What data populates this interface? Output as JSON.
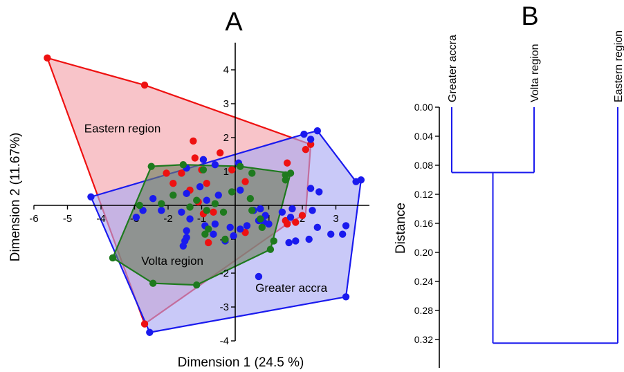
{
  "chart_data": [
    {
      "panel": "A",
      "type": "scatter",
      "xlabel": "Dimension 1 (24.5 %)",
      "ylabel": "Dimension 2 (11.67%)",
      "xlim": [
        -6,
        4
      ],
      "ylim": [
        -4,
        4.8
      ],
      "x_ticks": [
        -6,
        -5,
        -4,
        -3,
        -2,
        -1,
        1,
        2,
        3
      ],
      "y_ticks": [
        4,
        3,
        2,
        1,
        -1,
        -2,
        -3,
        -4
      ],
      "region_labels": [
        {
          "text": "Eastern region",
          "x": -4.5,
          "y": 2.15
        },
        {
          "text": "Volta region",
          "x": -2.8,
          "y": -1.75
        },
        {
          "text": "Greater accra",
          "x": 0.6,
          "y": -2.55
        }
      ],
      "series": [
        {
          "color": "#ee1111",
          "hull_fill": "#f4a0a8",
          "points": [
            [
              -5.6,
              4.35
            ],
            [
              -2.7,
              3.55
            ],
            [
              -1.25,
              1.9
            ],
            [
              -1.2,
              1.4
            ],
            [
              -1.0,
              1.05
            ],
            [
              -0.45,
              1.55
            ],
            [
              -0.1,
              1.05
            ],
            [
              -1.6,
              0.95
            ],
            [
              -2.05,
              0.95
            ],
            [
              -1.85,
              0.65
            ],
            [
              -0.85,
              0.65
            ],
            [
              -1.35,
              0.45
            ],
            [
              0.3,
              0.7
            ],
            [
              -1.1,
              0.1
            ],
            [
              -0.95,
              -0.25
            ],
            [
              -0.65,
              -0.2
            ],
            [
              -0.8,
              -1.1
            ],
            [
              0.3,
              -0.8
            ],
            [
              1.5,
              -0.45
            ],
            [
              1.55,
              -0.55
            ],
            [
              1.8,
              -0.5
            ],
            [
              2.0,
              -0.3
            ],
            [
              1.55,
              1.25
            ],
            [
              2.1,
              1.65
            ],
            [
              2.25,
              1.8
            ],
            [
              -2.7,
              -3.5
            ]
          ],
          "hull": [
            [
              -5.6,
              4.35
            ],
            [
              -2.7,
              3.55
            ],
            [
              2.25,
              1.8
            ],
            [
              2.1,
              -0.25
            ],
            [
              1.55,
              -0.55
            ],
            [
              -2.7,
              -3.5
            ]
          ]
        },
        {
          "color": "#1a1aee",
          "hull_fill": "#a8a8f4",
          "points": [
            [
              -4.3,
              0.25
            ],
            [
              2.45,
              2.2
            ],
            [
              2.05,
              2.1
            ],
            [
              2.25,
              1.95
            ],
            [
              3.6,
              0.7
            ],
            [
              3.75,
              0.75
            ],
            [
              2.25,
              0.5
            ],
            [
              2.5,
              0.4
            ],
            [
              -0.95,
              1.35
            ],
            [
              0.1,
              1.25
            ],
            [
              -0.6,
              1.2
            ],
            [
              -1.45,
              1.1
            ],
            [
              0.15,
              0.45
            ],
            [
              -1.05,
              0.55
            ],
            [
              -0.5,
              0.3
            ],
            [
              -1.45,
              0.35
            ],
            [
              -2.45,
              0.2
            ],
            [
              -0.85,
              0.15
            ],
            [
              -2.2,
              -0.15
            ],
            [
              -2.95,
              -0.35
            ],
            [
              -1.6,
              -0.2
            ],
            [
              -1.35,
              -0.4
            ],
            [
              -2.75,
              -0.15
            ],
            [
              -0.6,
              -0.55
            ],
            [
              -0.9,
              -0.6
            ],
            [
              -0.65,
              -0.85
            ],
            [
              -1.45,
              -0.75
            ],
            [
              -1.45,
              -0.95
            ],
            [
              -1.5,
              -1.05
            ],
            [
              -0.15,
              -0.65
            ],
            [
              0.15,
              -0.7
            ],
            [
              -0.05,
              -0.9
            ],
            [
              0.35,
              -0.6
            ],
            [
              0.7,
              -0.45
            ],
            [
              0.85,
              -0.5
            ],
            [
              1.0,
              -0.55
            ],
            [
              0.55,
              -0.15
            ],
            [
              0.75,
              -0.1
            ],
            [
              0.9,
              -0.3
            ],
            [
              1.4,
              -0.2
            ],
            [
              1.7,
              -0.1
            ],
            [
              1.65,
              -0.35
            ],
            [
              2.3,
              -0.15
            ],
            [
              2.45,
              -0.65
            ],
            [
              2.85,
              -0.85
            ],
            [
              2.2,
              -1.0
            ],
            [
              1.8,
              -1.05
            ],
            [
              1.6,
              -1.1
            ],
            [
              3.3,
              -0.6
            ],
            [
              3.2,
              -0.85
            ],
            [
              -0.3,
              -1.05
            ],
            [
              -1.55,
              -1.2
            ],
            [
              0.7,
              -2.1
            ],
            [
              -2.55,
              -3.75
            ],
            [
              3.3,
              -2.7
            ]
          ],
          "hull": [
            [
              -4.3,
              0.25
            ],
            [
              -2.55,
              -3.75
            ],
            [
              3.3,
              -2.7
            ],
            [
              3.75,
              0.75
            ],
            [
              3.6,
              0.7
            ],
            [
              2.45,
              2.2
            ],
            [
              2.05,
              2.1
            ]
          ]
        },
        {
          "color": "#1e7a1e",
          "hull_fill": "#6e8060",
          "points": [
            [
              -2.5,
              1.15
            ],
            [
              -1.55,
              1.2
            ],
            [
              -0.95,
              1.05
            ],
            [
              0.15,
              1.15
            ],
            [
              1.5,
              0.9
            ],
            [
              1.65,
              0.95
            ],
            [
              1.5,
              0.75
            ],
            [
              0.5,
              0.95
            ],
            [
              -0.1,
              0.4
            ],
            [
              0.45,
              0.2
            ],
            [
              -1.85,
              0.3
            ],
            [
              -1.15,
              0.15
            ],
            [
              -2.2,
              0.05
            ],
            [
              -2.85,
              0.0
            ],
            [
              -1.35,
              -0.05
            ],
            [
              -0.85,
              -0.15
            ],
            [
              -0.6,
              0.05
            ],
            [
              -0.35,
              -0.2
            ],
            [
              0.5,
              -0.15
            ],
            [
              0.75,
              -0.4
            ],
            [
              -0.8,
              -0.7
            ],
            [
              -0.9,
              -0.85
            ],
            [
              -0.3,
              -1.0
            ],
            [
              0.8,
              -0.65
            ],
            [
              1.15,
              -1.05
            ],
            [
              1.05,
              -1.3
            ],
            [
              -3.65,
              -1.55
            ],
            [
              -2.45,
              -2.3
            ],
            [
              -1.15,
              -2.35
            ]
          ],
          "hull": [
            [
              -2.5,
              1.15
            ],
            [
              -1.55,
              1.2
            ],
            [
              0.15,
              1.15
            ],
            [
              1.65,
              0.95
            ],
            [
              1.05,
              -1.3
            ],
            [
              -1.15,
              -2.35
            ],
            [
              -2.45,
              -2.3
            ],
            [
              -3.65,
              -1.55
            ]
          ]
        }
      ]
    },
    {
      "panel": "B",
      "type": "dendrogram",
      "ylabel": "Distance",
      "ylim": [
        0,
        0.36
      ],
      "y_ticks": [
        "0.00",
        "0.04",
        "0.08",
        "0.12",
        "0.16",
        "0.20",
        "0.24",
        "0.28",
        "0.32"
      ],
      "leaves": [
        "Greater accra",
        "Volta region",
        "Eastern region"
      ],
      "merges": [
        {
          "left": "Greater accra",
          "right": "Volta region",
          "height": 0.09
        },
        {
          "left": "Greater accra + Volta region",
          "right": "Eastern region",
          "height": 0.325
        }
      ],
      "line_color": "#1a1aee"
    }
  ],
  "panel_labels": {
    "a": "A",
    "b": "B"
  }
}
